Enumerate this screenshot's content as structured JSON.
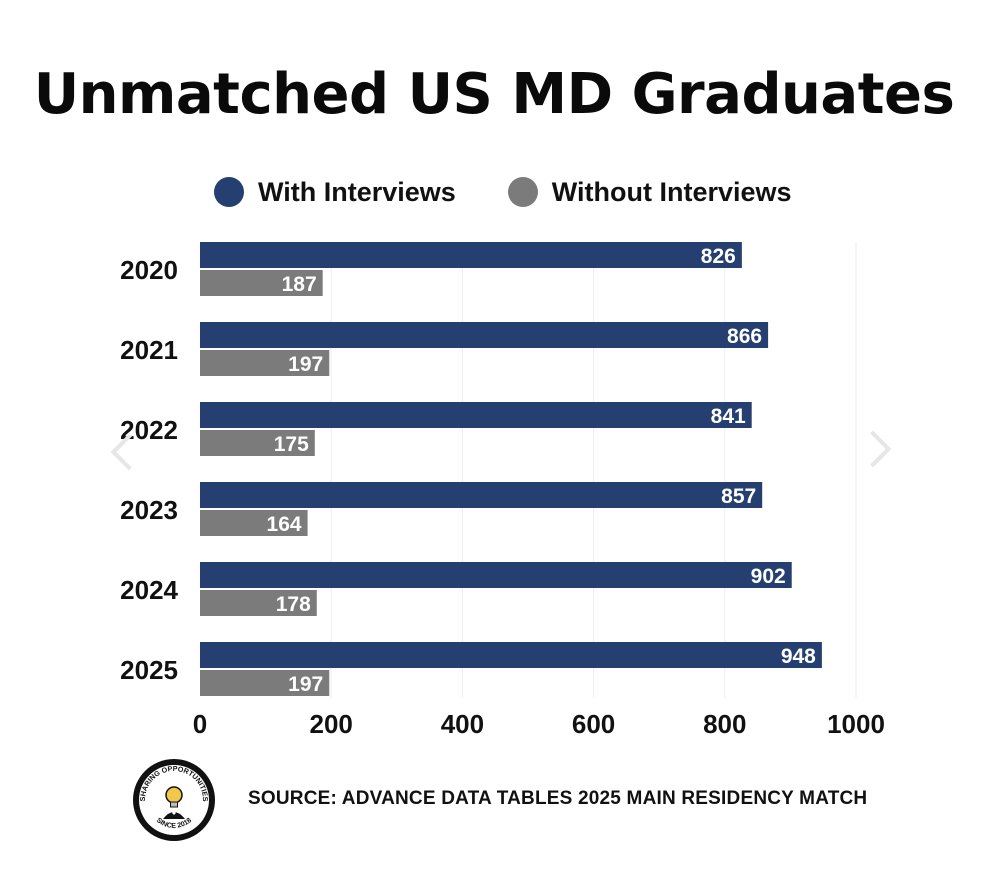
{
  "title": "Unmatched US MD Graduates",
  "legend": [
    {
      "label": "With Interviews",
      "color": "#253f70"
    },
    {
      "label": "Without Interviews",
      "color": "#7b7b7b"
    }
  ],
  "chart_data": {
    "type": "bar",
    "orientation": "horizontal",
    "title": "Unmatched US MD Graduates",
    "categories": [
      "2020",
      "2021",
      "2022",
      "2023",
      "2024",
      "2025"
    ],
    "series": [
      {
        "name": "With Interviews",
        "color": "#253f70",
        "values": [
          826,
          866,
          841,
          857,
          902,
          948
        ]
      },
      {
        "name": "Without Interviews",
        "color": "#7b7b7b",
        "values": [
          187,
          197,
          175,
          164,
          178,
          197
        ]
      }
    ],
    "xlim": [
      0,
      1000
    ],
    "xticks": [
      "0",
      "200",
      "400",
      "600",
      "800",
      "1000"
    ],
    "grid": true,
    "legend_position": "top",
    "data_labels": true
  },
  "logo": {
    "text_top": "SHARING OPPORTUNITIES",
    "text_bottom": "SINCE 2018",
    "icon": "lightbulb-mascot-icon"
  },
  "source": "SOURCE: ADVANCE DATA TABLES 2025 MAIN RESIDENCY MATCH",
  "nav": {
    "left_icon": "chevron-left-icon",
    "right_icon": "chevron-right-icon"
  }
}
